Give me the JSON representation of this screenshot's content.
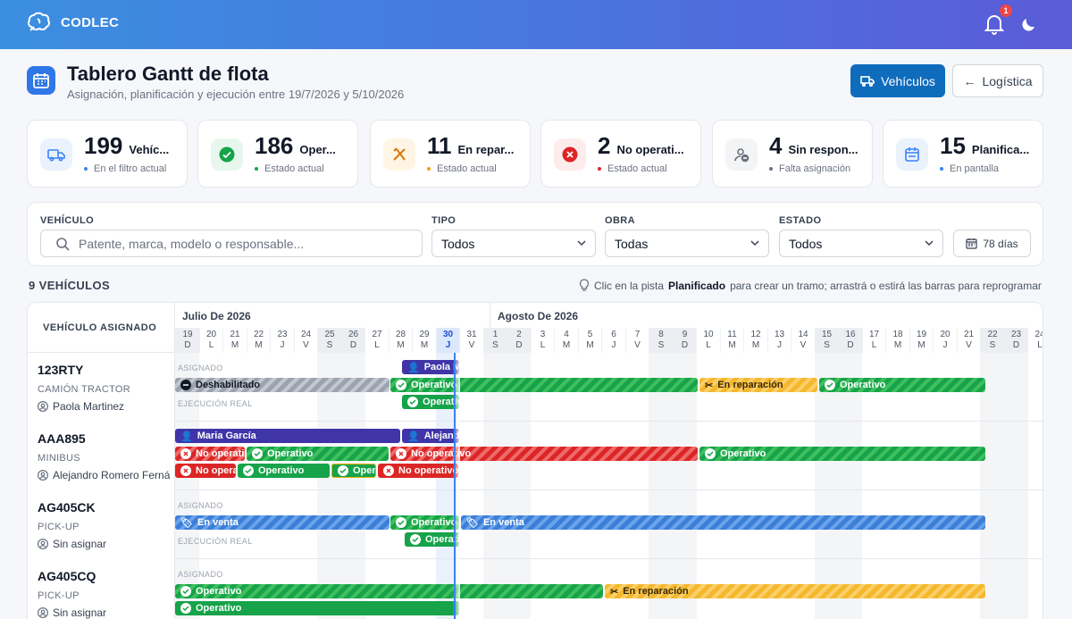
{
  "app": {
    "name": "CODLEC",
    "notifications": "1"
  },
  "header": {
    "title": "Tablero Gantt de flota",
    "subtitle": "Asignación, planificación y ejecución entre 19/7/2026 y 5/10/2026",
    "primary_button": "Vehículos",
    "secondary_button": "Logística"
  },
  "stats": [
    {
      "value": "199",
      "label": "Vehíc...",
      "sub": "En el filtro actual",
      "color": "#3b82f6",
      "icon": "truck-icon"
    },
    {
      "value": "186",
      "label": "Oper...",
      "sub": "Estado actual",
      "color": "#16a34a",
      "icon": "check-circle-icon"
    },
    {
      "value": "11",
      "label": "En repar...",
      "sub": "Estado actual",
      "color": "#f59e0b",
      "icon": "tools-icon"
    },
    {
      "value": "2",
      "label": "No operati...",
      "sub": "Estado actual",
      "color": "#dc2626",
      "icon": "x-circle-icon"
    },
    {
      "value": "4",
      "label": "Sin respon...",
      "sub": "Falta asignación",
      "color": "#6b7280",
      "icon": "user-minus-icon"
    },
    {
      "value": "15",
      "label": "Planifica...",
      "sub": "En pantalla",
      "color": "#3b82f6",
      "icon": "calendar-icon"
    }
  ],
  "filters": {
    "vehicle_label": "VEHÍCULO",
    "vehicle_placeholder": "Patente, marca, modelo o responsable...",
    "type_label": "TIPO",
    "type_value": "Todos",
    "work_label": "OBRA",
    "work_value": "Todas",
    "state_label": "ESTADO",
    "state_value": "Todos",
    "days_button": "78 días"
  },
  "list": {
    "count": "9 VEHÍCULOS",
    "hint_prefix": "Clic en la pista",
    "hint_bold": "Planificado",
    "hint_suffix": "para crear un tramo; arrastrá o estirá las barras para reprogramar"
  },
  "gantt": {
    "left_header": "VEHÍCULO  ASIGNADO",
    "months": [
      "Julio De 2026",
      "Agosto De 2026"
    ],
    "days": [
      {
        "n": "19",
        "d": "D",
        "we": true
      },
      {
        "n": "20",
        "d": "L"
      },
      {
        "n": "21",
        "d": "M"
      },
      {
        "n": "22",
        "d": "M"
      },
      {
        "n": "23",
        "d": "J"
      },
      {
        "n": "24",
        "d": "V"
      },
      {
        "n": "25",
        "d": "S",
        "we": true
      },
      {
        "n": "26",
        "d": "D",
        "we": true
      },
      {
        "n": "27",
        "d": "L"
      },
      {
        "n": "28",
        "d": "M"
      },
      {
        "n": "29",
        "d": "M"
      },
      {
        "n": "30",
        "d": "J",
        "today": true
      },
      {
        "n": "31",
        "d": "V"
      },
      {
        "n": "1",
        "d": "S",
        "we": true
      },
      {
        "n": "2",
        "d": "D",
        "we": true
      },
      {
        "n": "3",
        "d": "L"
      },
      {
        "n": "4",
        "d": "M"
      },
      {
        "n": "5",
        "d": "M"
      },
      {
        "n": "6",
        "d": "J"
      },
      {
        "n": "7",
        "d": "V"
      },
      {
        "n": "8",
        "d": "S",
        "we": true
      },
      {
        "n": "9",
        "d": "D",
        "we": true
      },
      {
        "n": "10",
        "d": "L"
      },
      {
        "n": "11",
        "d": "M"
      },
      {
        "n": "12",
        "d": "M"
      },
      {
        "n": "13",
        "d": "J"
      },
      {
        "n": "14",
        "d": "V"
      },
      {
        "n": "15",
        "d": "S",
        "we": true
      },
      {
        "n": "16",
        "d": "D",
        "we": true
      },
      {
        "n": "17",
        "d": "L"
      },
      {
        "n": "18",
        "d": "M"
      },
      {
        "n": "19",
        "d": "M"
      },
      {
        "n": "20",
        "d": "J"
      },
      {
        "n": "21",
        "d": "V"
      },
      {
        "n": "22",
        "d": "S",
        "we": true
      },
      {
        "n": "23",
        "d": "D",
        "we": true
      },
      {
        "n": "24",
        "d": "L"
      }
    ],
    "lane_assigned": "ASIGNADO",
    "lane_actual": "EJECUCIÓN REAL",
    "rows": [
      {
        "plate": "123RTY",
        "type": "CAMIÓN TRACTOR",
        "owner": "Paola Martinez"
      },
      {
        "plate": "AAA895",
        "type": "MINIBUS",
        "owner": "Alejandro Romero Ferná"
      },
      {
        "plate": "AG405CK",
        "type": "PICK-UP",
        "owner": "Sin asignar"
      },
      {
        "plate": "AG405CQ",
        "type": "PICK-UP",
        "owner": "Sin asignar"
      }
    ],
    "bars": {
      "r0_asg": "Paola Martinez",
      "r0_dis": "Deshabilitado",
      "r0_op1": "Operativo",
      "r0_rep": "En reparación",
      "r0_op2": "Operativo",
      "r0_real": "Operativo",
      "r1_asg1": "Maria García",
      "r1_asg2": "Alejandro Romero",
      "r1_no1": "No operativo",
      "r1_op1": "Operativo",
      "r1_no2": "No operativo",
      "r1_op2": "Operativo",
      "r1_r_no1": "No operativo",
      "r1_r_op1": "Operativo",
      "r1_r_op2": "Operativo",
      "r1_r_no2": "No operativo · Pendiente",
      "r2_sale1": "En venta",
      "r2_op": "Operativo",
      "r2_sale2": "En venta",
      "r2_real": "Operativo",
      "r3_op": "Operativo",
      "r3_rep": "En reparación",
      "r3_real": "Operativo"
    }
  }
}
